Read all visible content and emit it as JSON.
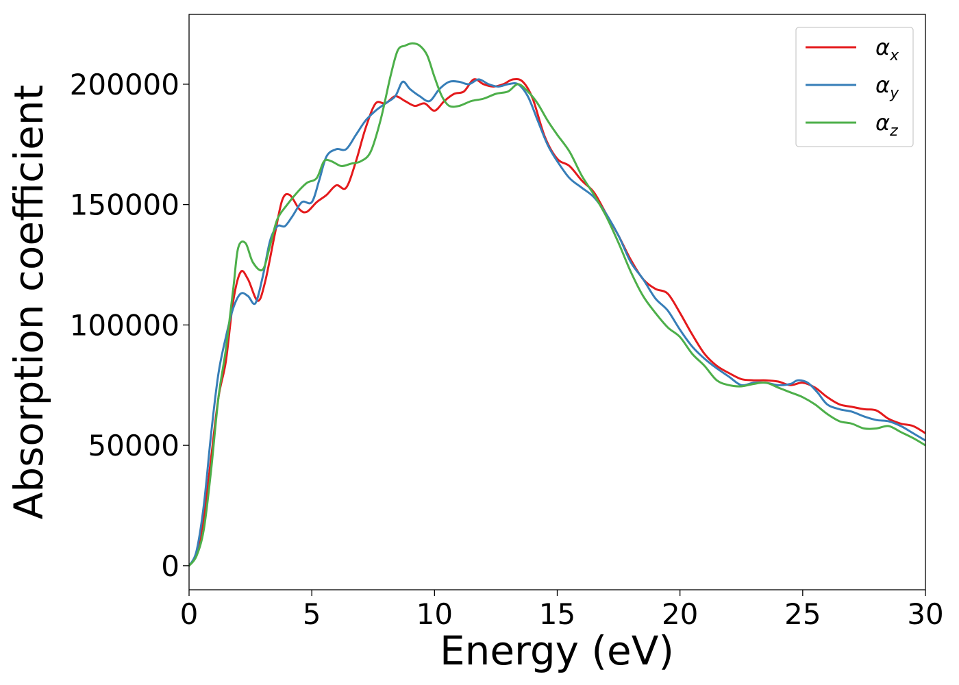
{
  "chart_data": {
    "type": "line",
    "title": "",
    "xlabel": "Energy (eV)",
    "ylabel": "Absorption coefficient",
    "xlim": [
      0,
      30
    ],
    "ylim": [
      -10000,
      229000
    ],
    "xticks": [
      0,
      5,
      10,
      15,
      20,
      25,
      30
    ],
    "xtick_labels": [
      "0",
      "5",
      "10",
      "15",
      "20",
      "25",
      "30"
    ],
    "yticks": [
      0,
      50000,
      100000,
      150000,
      200000
    ],
    "ytick_labels": [
      "0",
      "50000",
      "100000",
      "150000",
      "200000"
    ],
    "grid": false,
    "legend_position": "top-right",
    "series": [
      {
        "name": "αx",
        "symbol": "α",
        "subscript": "x",
        "color": "#e41a1c",
        "points": [
          [
            0,
            0
          ],
          [
            0.3,
            5000
          ],
          [
            0.6,
            20000
          ],
          [
            0.9,
            45000
          ],
          [
            1.2,
            70000
          ],
          [
            1.5,
            85000
          ],
          [
            1.8,
            110000
          ],
          [
            2.1,
            122000
          ],
          [
            2.4,
            119000
          ],
          [
            2.8,
            110000
          ],
          [
            3.1,
            118000
          ],
          [
            3.5,
            138000
          ],
          [
            3.8,
            152000
          ],
          [
            4.1,
            154000
          ],
          [
            4.5,
            148000
          ],
          [
            4.8,
            147000
          ],
          [
            5.2,
            151000
          ],
          [
            5.6,
            154000
          ],
          [
            6.0,
            158000
          ],
          [
            6.4,
            157000
          ],
          [
            6.8,
            168000
          ],
          [
            7.2,
            182000
          ],
          [
            7.6,
            192000
          ],
          [
            8.0,
            192000
          ],
          [
            8.4,
            195000
          ],
          [
            8.8,
            193000
          ],
          [
            9.2,
            191000
          ],
          [
            9.6,
            192000
          ],
          [
            10.0,
            189000
          ],
          [
            10.4,
            193000
          ],
          [
            10.8,
            196000
          ],
          [
            11.2,
            197000
          ],
          [
            11.6,
            202000
          ],
          [
            12.0,
            200000
          ],
          [
            12.4,
            199000
          ],
          [
            12.8,
            200000
          ],
          [
            13.2,
            202000
          ],
          [
            13.6,
            201000
          ],
          [
            14.0,
            194000
          ],
          [
            14.5,
            178000
          ],
          [
            15.0,
            169000
          ],
          [
            15.5,
            166000
          ],
          [
            16.0,
            160000
          ],
          [
            16.5,
            155000
          ],
          [
            17.0,
            146000
          ],
          [
            17.5,
            137000
          ],
          [
            18.0,
            127000
          ],
          [
            18.5,
            119000
          ],
          [
            19.0,
            115000
          ],
          [
            19.5,
            113000
          ],
          [
            20.0,
            105000
          ],
          [
            20.5,
            96000
          ],
          [
            21.0,
            88000
          ],
          [
            21.5,
            83000
          ],
          [
            22.0,
            80000
          ],
          [
            22.5,
            77500
          ],
          [
            23.0,
            77000
          ],
          [
            23.5,
            77000
          ],
          [
            24.0,
            76500
          ],
          [
            24.5,
            75000
          ],
          [
            25.0,
            76000
          ],
          [
            25.5,
            74000
          ],
          [
            26.0,
            70000
          ],
          [
            26.5,
            67000
          ],
          [
            27.0,
            66000
          ],
          [
            27.5,
            65000
          ],
          [
            28.0,
            64500
          ],
          [
            28.5,
            61000
          ],
          [
            29.0,
            59000
          ],
          [
            29.5,
            58000
          ],
          [
            30.0,
            55000
          ]
        ]
      },
      {
        "name": "αy",
        "symbol": "α",
        "subscript": "y",
        "color": "#377eb8",
        "points": [
          [
            0,
            0
          ],
          [
            0.3,
            6000
          ],
          [
            0.6,
            25000
          ],
          [
            0.9,
            55000
          ],
          [
            1.2,
            80000
          ],
          [
            1.5,
            95000
          ],
          [
            1.8,
            107000
          ],
          [
            2.1,
            113000
          ],
          [
            2.4,
            112000
          ],
          [
            2.7,
            109000
          ],
          [
            3.0,
            120000
          ],
          [
            3.3,
            135000
          ],
          [
            3.6,
            141000
          ],
          [
            3.9,
            141000
          ],
          [
            4.2,
            145000
          ],
          [
            4.6,
            151000
          ],
          [
            5.0,
            151000
          ],
          [
            5.3,
            160000
          ],
          [
            5.6,
            170000
          ],
          [
            6.0,
            173000
          ],
          [
            6.4,
            173000
          ],
          [
            6.8,
            179000
          ],
          [
            7.2,
            185000
          ],
          [
            7.6,
            189000
          ],
          [
            8.0,
            192000
          ],
          [
            8.4,
            195000
          ],
          [
            8.7,
            201000
          ],
          [
            9.0,
            198000
          ],
          [
            9.4,
            195000
          ],
          [
            9.8,
            193000
          ],
          [
            10.2,
            198000
          ],
          [
            10.6,
            201000
          ],
          [
            11.0,
            201000
          ],
          [
            11.4,
            200000
          ],
          [
            11.8,
            202000
          ],
          [
            12.2,
            200000
          ],
          [
            12.6,
            199000
          ],
          [
            13.0,
            200000
          ],
          [
            13.4,
            200000
          ],
          [
            13.8,
            195000
          ],
          [
            14.2,
            185000
          ],
          [
            14.6,
            175000
          ],
          [
            15.0,
            168000
          ],
          [
            15.5,
            161000
          ],
          [
            16.0,
            157000
          ],
          [
            16.5,
            153000
          ],
          [
            17.0,
            146000
          ],
          [
            17.5,
            137000
          ],
          [
            18.0,
            126000
          ],
          [
            18.5,
            119000
          ],
          [
            19.0,
            111000
          ],
          [
            19.5,
            106000
          ],
          [
            20.0,
            98000
          ],
          [
            20.5,
            91000
          ],
          [
            21.0,
            86000
          ],
          [
            21.5,
            82000
          ],
          [
            22.0,
            78500
          ],
          [
            22.5,
            75000
          ],
          [
            23.0,
            76000
          ],
          [
            23.5,
            76000
          ],
          [
            24.0,
            75000
          ],
          [
            24.5,
            75500
          ],
          [
            24.8,
            77000
          ],
          [
            25.2,
            76000
          ],
          [
            25.6,
            72000
          ],
          [
            26.0,
            67000
          ],
          [
            26.5,
            65000
          ],
          [
            27.0,
            64000
          ],
          [
            27.5,
            62000
          ],
          [
            28.0,
            60500
          ],
          [
            28.5,
            60000
          ],
          [
            29.0,
            58000
          ],
          [
            29.5,
            55000
          ],
          [
            30.0,
            52000
          ]
        ]
      },
      {
        "name": "αz",
        "symbol": "α",
        "subscript": "z",
        "color": "#4daf4a",
        "points": [
          [
            0,
            0
          ],
          [
            0.3,
            4000
          ],
          [
            0.6,
            15000
          ],
          [
            0.9,
            40000
          ],
          [
            1.2,
            70000
          ],
          [
            1.5,
            90000
          ],
          [
            1.8,
            115000
          ],
          [
            2.0,
            132000
          ],
          [
            2.3,
            134000
          ],
          [
            2.6,
            126000
          ],
          [
            3.0,
            123000
          ],
          [
            3.3,
            133000
          ],
          [
            3.6,
            144000
          ],
          [
            4.0,
            150000
          ],
          [
            4.4,
            155000
          ],
          [
            4.8,
            159000
          ],
          [
            5.2,
            161000
          ],
          [
            5.5,
            168000
          ],
          [
            5.8,
            168000
          ],
          [
            6.2,
            166000
          ],
          [
            6.6,
            167000
          ],
          [
            7.0,
            168000
          ],
          [
            7.4,
            172000
          ],
          [
            7.8,
            185000
          ],
          [
            8.2,
            203000
          ],
          [
            8.5,
            214000
          ],
          [
            8.8,
            216000
          ],
          [
            9.1,
            217000
          ],
          [
            9.4,
            216000
          ],
          [
            9.7,
            212000
          ],
          [
            10.0,
            203000
          ],
          [
            10.3,
            195000
          ],
          [
            10.6,
            191000
          ],
          [
            11.0,
            191000
          ],
          [
            11.5,
            193000
          ],
          [
            12.0,
            194000
          ],
          [
            12.5,
            196000
          ],
          [
            13.0,
            197000
          ],
          [
            13.4,
            200000
          ],
          [
            13.8,
            197000
          ],
          [
            14.2,
            192000
          ],
          [
            14.6,
            185000
          ],
          [
            15.0,
            179000
          ],
          [
            15.5,
            172000
          ],
          [
            16.0,
            162000
          ],
          [
            16.5,
            154000
          ],
          [
            17.0,
            145000
          ],
          [
            17.5,
            134000
          ],
          [
            18.0,
            122000
          ],
          [
            18.5,
            112000
          ],
          [
            19.0,
            105000
          ],
          [
            19.5,
            99000
          ],
          [
            20.0,
            95000
          ],
          [
            20.5,
            88000
          ],
          [
            21.0,
            83000
          ],
          [
            21.5,
            77000
          ],
          [
            22.0,
            75000
          ],
          [
            22.5,
            74500
          ],
          [
            23.0,
            75500
          ],
          [
            23.5,
            76000
          ],
          [
            24.0,
            74000
          ],
          [
            24.5,
            72000
          ],
          [
            25.0,
            70000
          ],
          [
            25.5,
            67000
          ],
          [
            26.0,
            63000
          ],
          [
            26.5,
            60000
          ],
          [
            27.0,
            59000
          ],
          [
            27.5,
            57000
          ],
          [
            28.0,
            57000
          ],
          [
            28.5,
            58000
          ],
          [
            29.0,
            55500
          ],
          [
            29.5,
            53000
          ],
          [
            30.0,
            50000
          ]
        ]
      }
    ]
  }
}
